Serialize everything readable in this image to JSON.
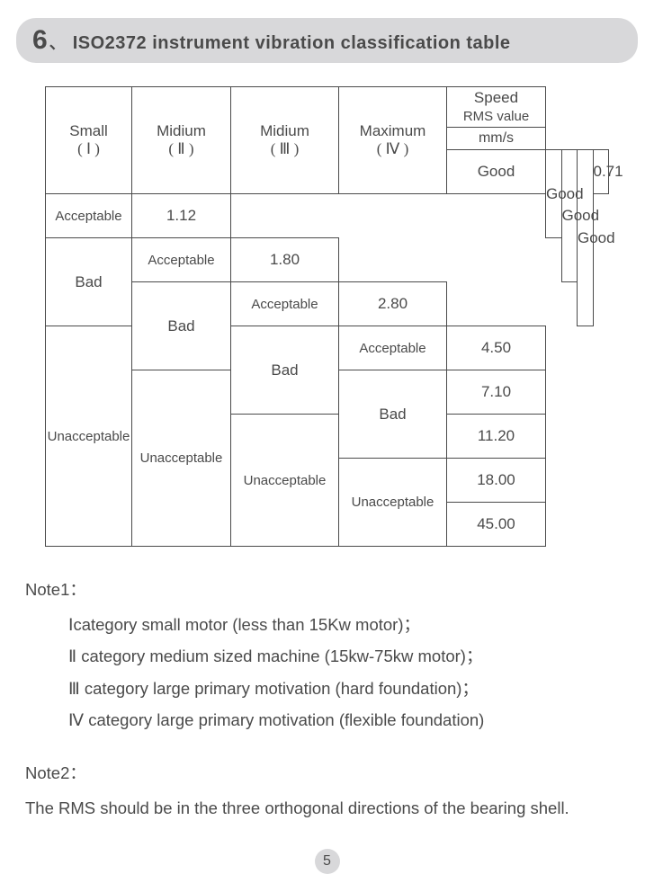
{
  "section": {
    "number": "6",
    "corner_mark": "、",
    "title": "ISO2372 instrument vibration classification table"
  },
  "table": {
    "headers": {
      "col1_top": "Small",
      "col1_bot": "( Ⅰ )",
      "col2_top": "Midium",
      "col2_bot": "( Ⅱ )",
      "col3_top": "Midium",
      "col3_bot": "( Ⅲ )",
      "col4_top": "Maximum",
      "col4_bot": "( Ⅳ )",
      "col5_top_line1": "Speed",
      "col5_top_line2": "RMS value",
      "col5_bot": "mm/s"
    },
    "ratings": {
      "good": "Good",
      "acceptable": "Acceptable",
      "bad": "Bad",
      "unacceptable": "Unacceptable"
    },
    "speed_values": [
      "0.71",
      "1.12",
      "1.80",
      "2.80",
      "4.50",
      "7.10",
      "11.20",
      "18.00",
      "45.00"
    ]
  },
  "notes": {
    "note1_title": "Note1：",
    "note1_lines": [
      "Ⅰcategory small motor (less than 15Kw motor)；",
      "Ⅱ category medium sized machine (15kw-75kw motor)；",
      "Ⅲ category large primary motivation (hard foundation)；",
      "Ⅳ category large primary motivation (flexible foundation)"
    ],
    "note2_title": "Note2：",
    "note2_body": "The RMS should be in the three orthogonal directions of the bearing shell."
  },
  "page_number": "5"
}
